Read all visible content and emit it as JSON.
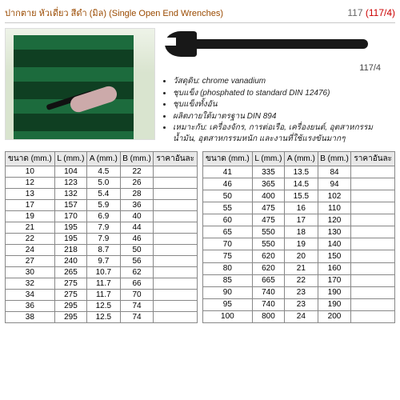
{
  "header": {
    "title_th": "ปากตาย หัวเดี่ยว สีดำ (มิล)",
    "title_en": "(Single Open End Wrenches)",
    "code_grey": "117",
    "code_red": "(117/4)"
  },
  "product": {
    "image_code": "117/4",
    "bullets": [
      "วัสดุดิบ: chrome vanadium",
      "ชุบแข็ง (phosphated to standard DIN 12476)",
      "ชุบแข็งทั้งอัน",
      "ผลิตภายใต้มาตรฐาน DIN 894",
      "เหมาะกับ: เครื่องจักร, การต่อเรือ, เครื่องยนต์, อุตสาหกรรมน้ำมัน, อุตสาหกรรมหนัก และงานที่ใช้แรงขันมากๆ"
    ]
  },
  "table": {
    "headers": [
      "ขนาด (mm.)",
      "L (mm.)",
      "A (mm.)",
      "B (mm.)",
      "ราคาอันละ"
    ],
    "left_rows": [
      [
        "10",
        "104",
        "4.5",
        "22",
        ""
      ],
      [
        "12",
        "123",
        "5.0",
        "26",
        ""
      ],
      [
        "13",
        "132",
        "5.4",
        "28",
        ""
      ],
      [
        "17",
        "157",
        "5.9",
        "36",
        ""
      ],
      [
        "19",
        "170",
        "6.9",
        "40",
        ""
      ],
      [
        "21",
        "195",
        "7.9",
        "44",
        ""
      ],
      [
        "22",
        "195",
        "7.9",
        "46",
        ""
      ],
      [
        "24",
        "218",
        "8.7",
        "50",
        ""
      ],
      [
        "27",
        "240",
        "9.7",
        "56",
        ""
      ],
      [
        "30",
        "265",
        "10.7",
        "62",
        ""
      ],
      [
        "32",
        "275",
        "11.7",
        "66",
        ""
      ],
      [
        "34",
        "275",
        "11.7",
        "70",
        ""
      ],
      [
        "36",
        "295",
        "12.5",
        "74",
        ""
      ],
      [
        "38",
        "295",
        "12.5",
        "74",
        ""
      ]
    ],
    "right_rows": [
      [
        "41",
        "335",
        "13.5",
        "84",
        ""
      ],
      [
        "46",
        "365",
        "14.5",
        "94",
        ""
      ],
      [
        "50",
        "400",
        "15.5",
        "102",
        ""
      ],
      [
        "55",
        "475",
        "16",
        "110",
        ""
      ],
      [
        "60",
        "475",
        "17",
        "120",
        ""
      ],
      [
        "65",
        "550",
        "18",
        "130",
        ""
      ],
      [
        "70",
        "550",
        "19",
        "140",
        ""
      ],
      [
        "75",
        "620",
        "20",
        "150",
        ""
      ],
      [
        "80",
        "620",
        "21",
        "160",
        ""
      ],
      [
        "85",
        "665",
        "22",
        "170",
        ""
      ],
      [
        "90",
        "740",
        "23",
        "190",
        ""
      ],
      [
        "95",
        "740",
        "23",
        "190",
        ""
      ],
      [
        "100",
        "800",
        "24",
        "200",
        ""
      ]
    ]
  },
  "styling": {
    "title_color": "#9a4a00",
    "code_red": "#c00",
    "border_color": "#888",
    "header_bg": "#e8e8e8",
    "font_size_body": 10,
    "font_size_title": 11
  }
}
